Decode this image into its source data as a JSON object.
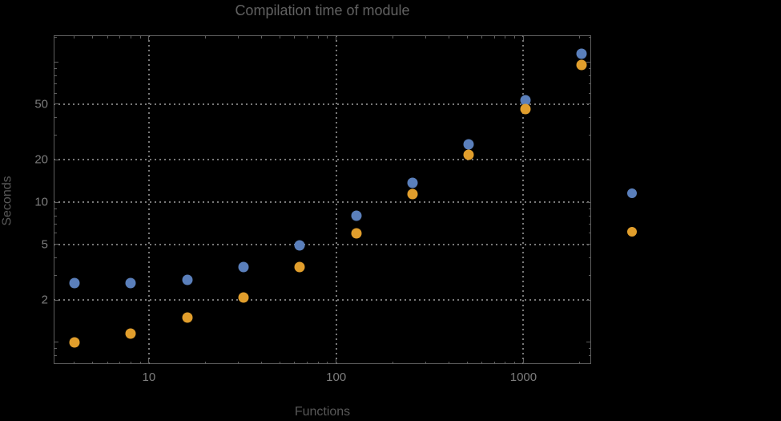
{
  "title": "Compilation time of module",
  "colors": {
    "background": "#000000",
    "frame": "#5e5e5e",
    "grid": "#787878",
    "tick_label": "#7d7d7d",
    "title_text": "#616161",
    "axis_label_text": "#585858",
    "series1": "#5a7fbb",
    "series2": "#e19e2c"
  },
  "chart_data": {
    "type": "scatter",
    "title": "Compilation time of module",
    "xlabel": "Functions",
    "ylabel": "Seconds",
    "xscale": "log",
    "yscale": "log",
    "xlim": [
      3.1,
      2300
    ],
    "ylim": [
      0.7,
      155
    ],
    "grid": "dotted, at labeled major ticks only",
    "legend_position": "right-of-frame, markers only (no visible text)",
    "x": [
      4,
      8,
      16,
      32,
      64,
      128,
      256,
      512,
      1024,
      2048
    ],
    "series": [
      {
        "name": "series-1-blue",
        "color": "#5a7fbb",
        "values": [
          2.65,
          2.65,
          2.8,
          3.45,
          4.9,
          8.0,
          13.7,
          26,
          53,
          115
        ]
      },
      {
        "name": "series-2-orange",
        "color": "#e19e2c",
        "values": [
          1.0,
          1.15,
          1.5,
          2.1,
          3.45,
          6.0,
          11.4,
          21.8,
          46,
          95
        ]
      }
    ],
    "x_ticks": {
      "labeled": [
        10,
        100,
        1000
      ],
      "labels": [
        "10",
        "100",
        "1000"
      ],
      "minor": [
        4,
        5,
        6,
        7,
        8,
        9,
        20,
        30,
        40,
        50,
        60,
        70,
        80,
        90,
        200,
        300,
        400,
        500,
        600,
        700,
        800,
        900,
        2000
      ]
    },
    "y_ticks": {
      "labeled": [
        2,
        5,
        10,
        20,
        50
      ],
      "labels": [
        "2",
        "5",
        "10",
        "20",
        "50"
      ],
      "major_unlabeled": [
        1,
        100
      ],
      "minor": [
        0.8,
        0.9,
        3,
        4,
        6,
        7,
        8,
        9,
        30,
        40,
        60,
        70,
        80,
        90,
        150
      ]
    },
    "gridlines": {
      "x": [
        10,
        100,
        1000
      ],
      "y": [
        2,
        5,
        10,
        20,
        50
      ]
    },
    "legend": {
      "markers": [
        {
          "series": "series-1-blue",
          "color": "#5a7fbb"
        },
        {
          "series": "series-2-orange",
          "color": "#e19e2c"
        }
      ]
    }
  }
}
